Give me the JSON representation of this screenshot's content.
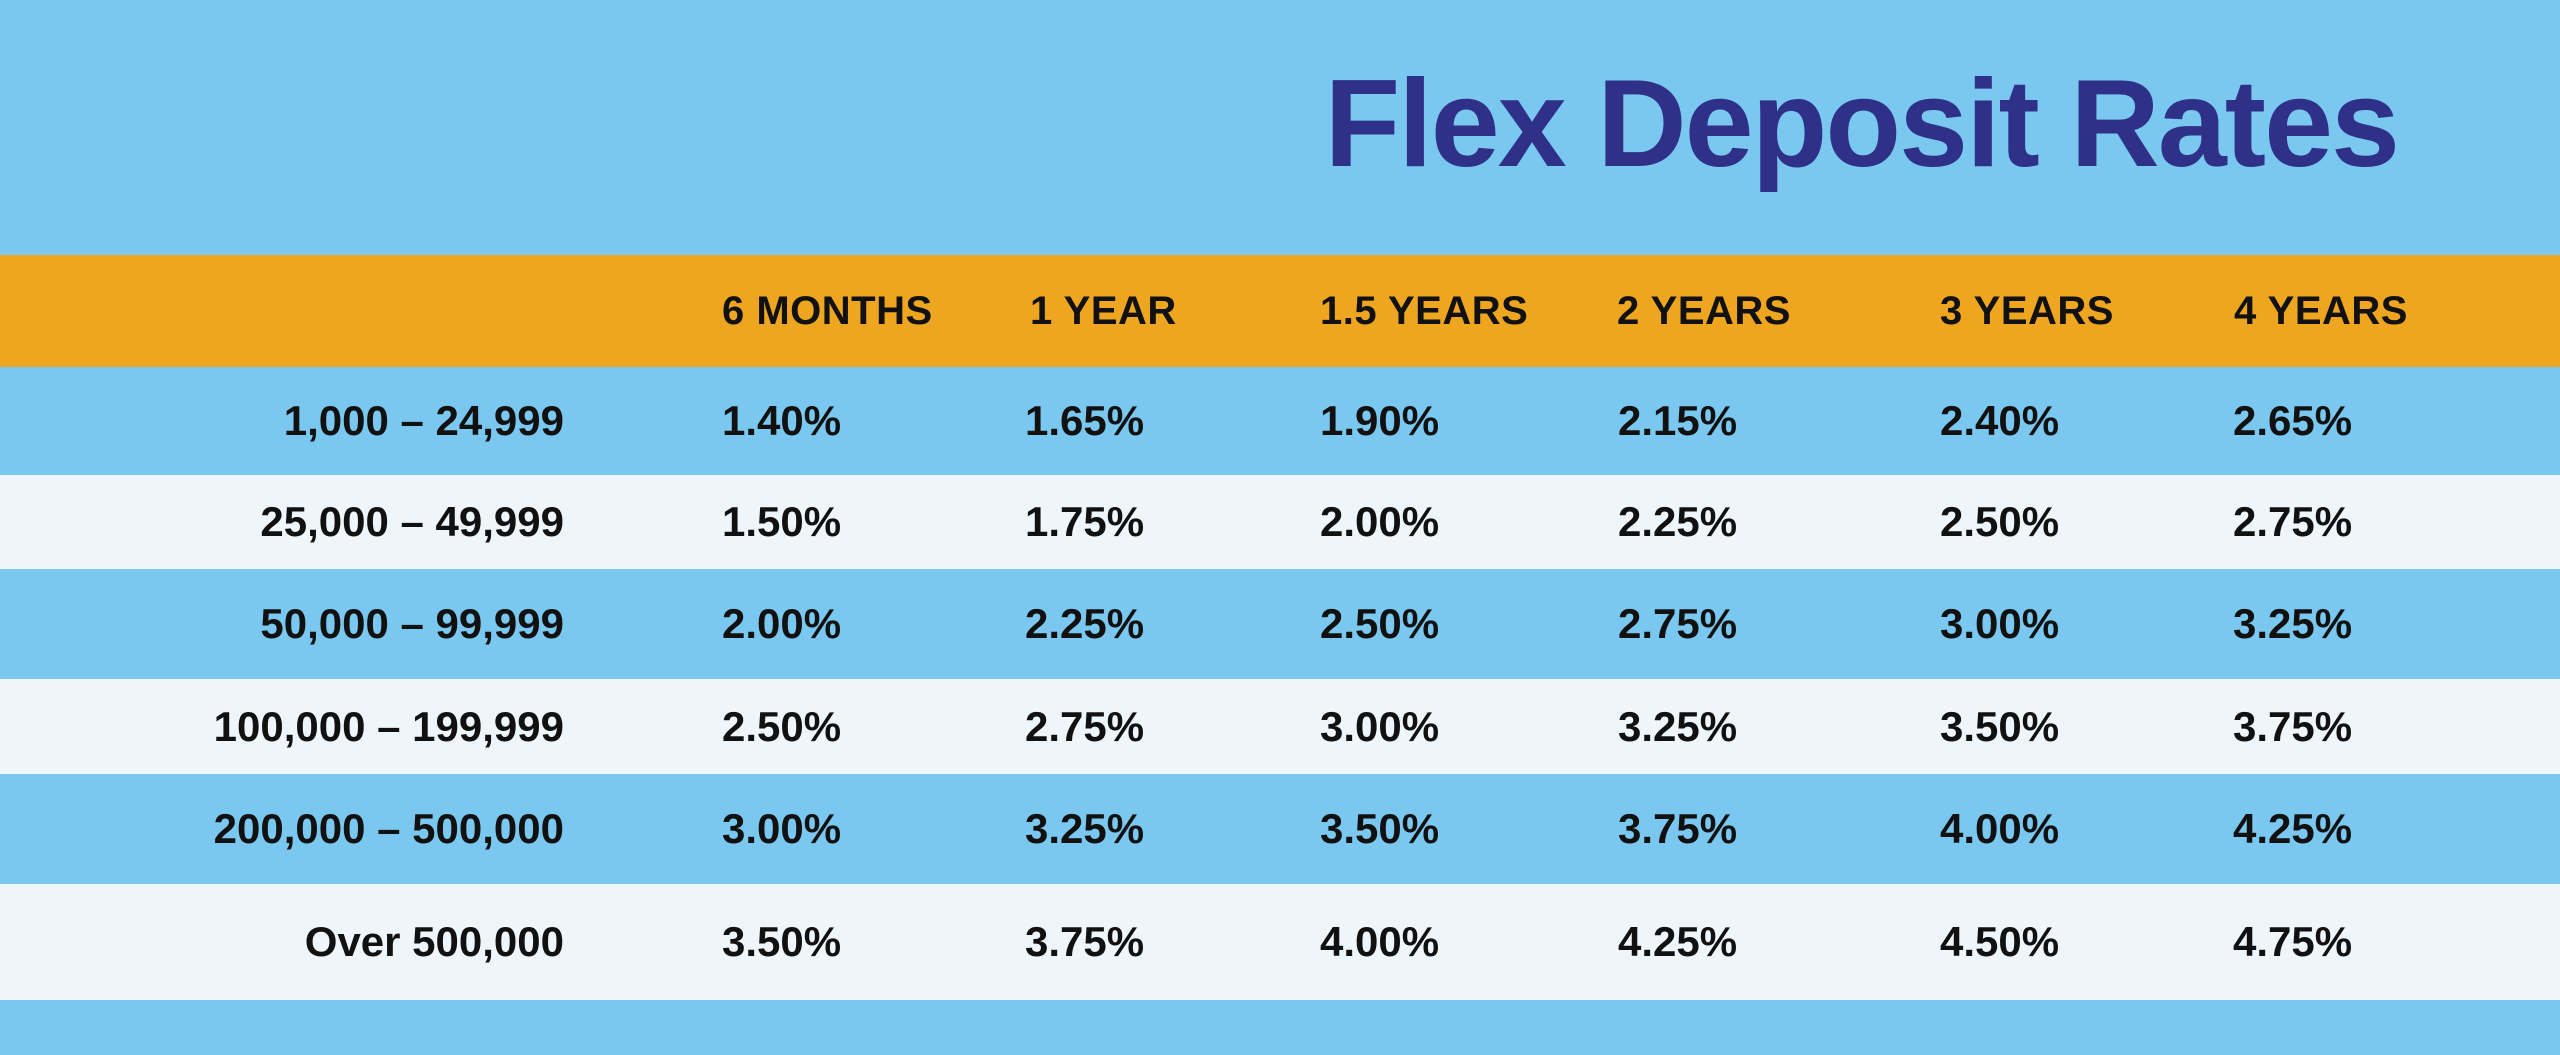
{
  "colors": {
    "background": "#7ac8ef",
    "title": "#2e3187",
    "header_band": "#eea51f",
    "row_light": "#eef6fc",
    "row_dark": "#7ac8ef",
    "text": "#111111"
  },
  "title": "Flex Deposit Rates",
  "chart_data": {
    "type": "table",
    "title": "Flex Deposit Rates",
    "columns": [
      "",
      "6 MONTHS",
      "1 YEAR",
      "1.5 YEARS",
      "2 YEARS",
      "3 YEARS",
      "4 YEARS"
    ],
    "rows": [
      {
        "label": "1,000 – 24,999",
        "values": [
          "1.40%",
          "1.65%",
          "1.90%",
          "2.15%",
          "2.40%",
          "2.65%"
        ]
      },
      {
        "label": "25,000 – 49,999",
        "values": [
          "1.50%",
          "1.75%",
          "2.00%",
          "2.25%",
          "2.50%",
          "2.75%"
        ]
      },
      {
        "label": "50,000 – 99,999",
        "values": [
          "2.00%",
          "2.25%",
          "2.50%",
          "2.75%",
          "3.00%",
          "3.25%"
        ]
      },
      {
        "label": "100,000 – 199,999",
        "values": [
          "2.50%",
          "2.75%",
          "3.00%",
          "3.25%",
          "3.50%",
          "3.75%"
        ]
      },
      {
        "label": "200,000 – 500,000",
        "values": [
          "3.00%",
          "3.25%",
          "3.50%",
          "3.75%",
          "4.00%",
          "4.25%"
        ]
      },
      {
        "label": "Over 500,000",
        "values": [
          "3.50%",
          "3.75%",
          "4.00%",
          "4.25%",
          "4.50%",
          "4.75%"
        ]
      }
    ]
  }
}
